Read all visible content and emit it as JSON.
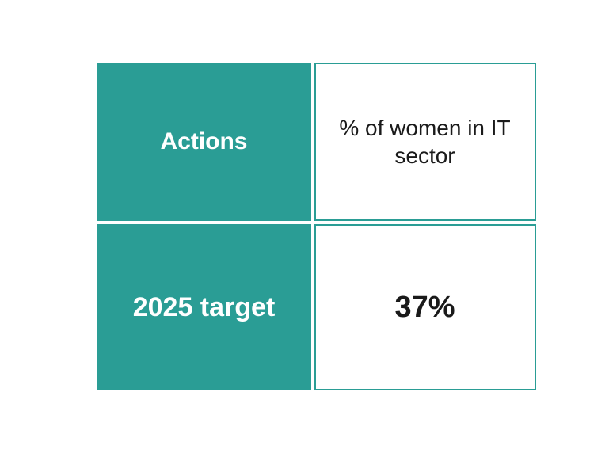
{
  "table": {
    "type": "infographic",
    "rows": 2,
    "columns": 2,
    "colors": {
      "teal": "#2a9d95",
      "white": "#ffffff",
      "text_dark": "#1a1a1a",
      "border": "#2a9d95"
    },
    "cells": {
      "actions_header": "Actions",
      "metric_description": "% of women in IT sector",
      "target_year": "2025 target",
      "target_value": "37%"
    },
    "layout": {
      "container_width": 550,
      "container_height": 414,
      "cell_gap": 4,
      "border_width": 2
    },
    "typography": {
      "actions_fontsize": 30,
      "metric_fontsize": 28,
      "target_fontsize": 34,
      "value_fontsize": 38,
      "font_family": "sans-serif"
    }
  }
}
